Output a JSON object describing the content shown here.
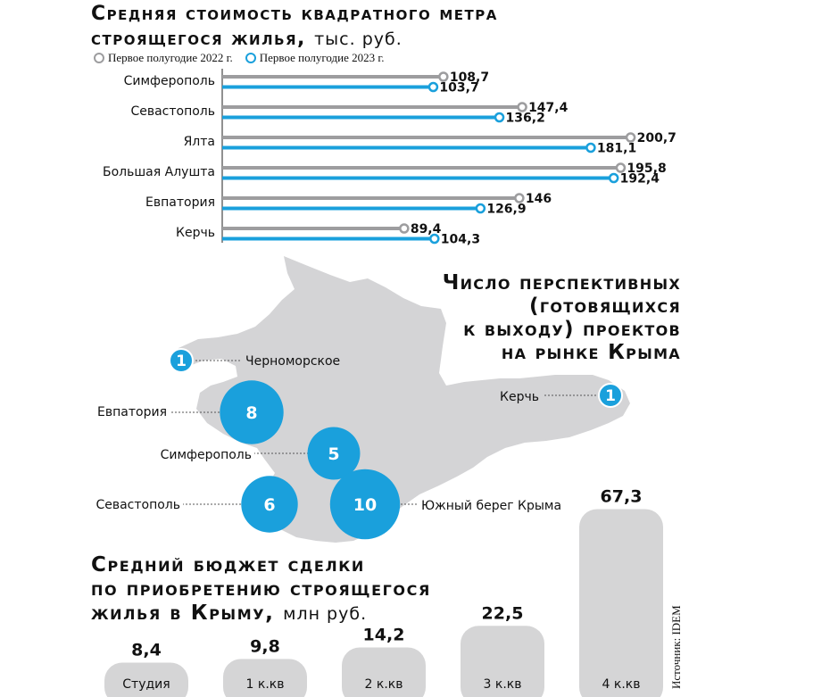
{
  "price_chart": {
    "title": "Средняя стоимость квадратного метра строящегося жилья,",
    "title_line1": "Средняя стоимость квадратного метра",
    "title_line2": "строящегося жилья,",
    "unit": "тыс. руб.",
    "legend": [
      "Первое полугодие 2022 г.",
      "Первое полугодие 2023 г."
    ]
  },
  "map": {
    "title_lines": [
      "Число перспективных",
      "(готовящихся",
      "к выходу) проектов",
      "на рынке Крыма"
    ]
  },
  "budget_chart": {
    "title_lines": [
      "Средний бюджет сделки",
      "по приобретению строящегося",
      "жилья в Крыму,"
    ],
    "unit": "млн руб."
  },
  "source": "Источник: IDEM",
  "colors": {
    "gray": "#9d9d9f",
    "blue": "#1aa0dc",
    "map": "#d4d4d6",
    "bar": "#d5d5d6"
  },
  "chart_data": [
    {
      "type": "bar",
      "orientation": "horizontal",
      "title": "Средняя стоимость квадратного метра строящегося жилья, тыс. руб.",
      "categories": [
        "Симферополь",
        "Севастополь",
        "Ялта",
        "Большая Алушта",
        "Евпатория",
        "Керчь"
      ],
      "series": [
        {
          "name": "Первое полугодие 2022 г.",
          "values": [
            108.7,
            147.4,
            200.7,
            195.8,
            146,
            89.4
          ],
          "labels": [
            "108,7",
            "147,4",
            "200,7",
            "195,8",
            "146",
            "89,4"
          ]
        },
        {
          "name": "Первое полугодие 2023 г.",
          "values": [
            103.7,
            136.2,
            181.1,
            192.4,
            126.9,
            104.3
          ],
          "labels": [
            "103,7",
            "136,2",
            "181,1",
            "192,4",
            "126,9",
            "104,3"
          ]
        }
      ],
      "legend_position": "top-left",
      "grid": false
    },
    {
      "type": "bubble-map",
      "title": "Число перспективных (готовящихся к выходу) проектов на рынке Крыма",
      "categories": [
        "Черноморское",
        "Евпатория",
        "Симферополь",
        "Севастополь",
        "Южный берег Крыма",
        "Керчь"
      ],
      "values": [
        1,
        8,
        5,
        6,
        10,
        1
      ],
      "labels": [
        "1",
        "8",
        "5",
        "6",
        "10",
        "1"
      ]
    },
    {
      "type": "bar",
      "title": "Средний бюджет сделки по приобретению строящегося жилья в Крыму, млн руб.",
      "categories": [
        "Студия",
        "1 к.кв",
        "2 к.кв",
        "3 к.кв",
        "4 к.кв"
      ],
      "values": [
        8.4,
        9.8,
        14.2,
        22.5,
        67.3
      ],
      "labels": [
        "8,4",
        "9,8",
        "14,2",
        "22,5",
        "67,3"
      ],
      "grid": false
    }
  ]
}
